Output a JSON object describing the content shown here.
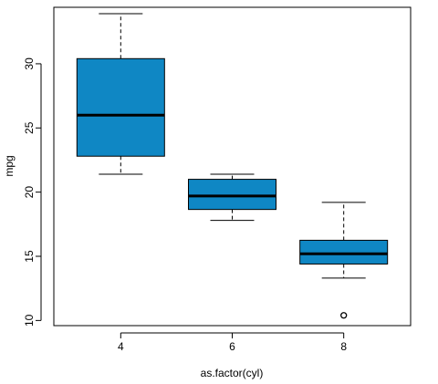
{
  "chart_data": {
    "type": "box",
    "categories": [
      "4",
      "6",
      "8"
    ],
    "xlabel": "as.factor(cyl)",
    "ylabel": "mpg",
    "ylim": [
      9.6,
      34.4
    ],
    "yticks": [
      10,
      15,
      20,
      25,
      30
    ],
    "grid": false,
    "legend": "none",
    "box_fill": "#0f87c4",
    "median_color": "#000000",
    "boxes": [
      {
        "category": "4",
        "whisker_low": 21.4,
        "q1": 22.8,
        "median": 26.0,
        "q3": 30.4,
        "whisker_high": 33.9,
        "outliers": []
      },
      {
        "category": "6",
        "whisker_low": 17.8,
        "q1": 18.65,
        "median": 19.7,
        "q3": 21.0,
        "whisker_high": 21.4,
        "outliers": []
      },
      {
        "category": "8",
        "whisker_low": 13.3,
        "q1": 14.4,
        "median": 15.2,
        "q3": 16.25,
        "whisker_high": 19.2,
        "outliers": [
          10.4
        ]
      }
    ]
  }
}
